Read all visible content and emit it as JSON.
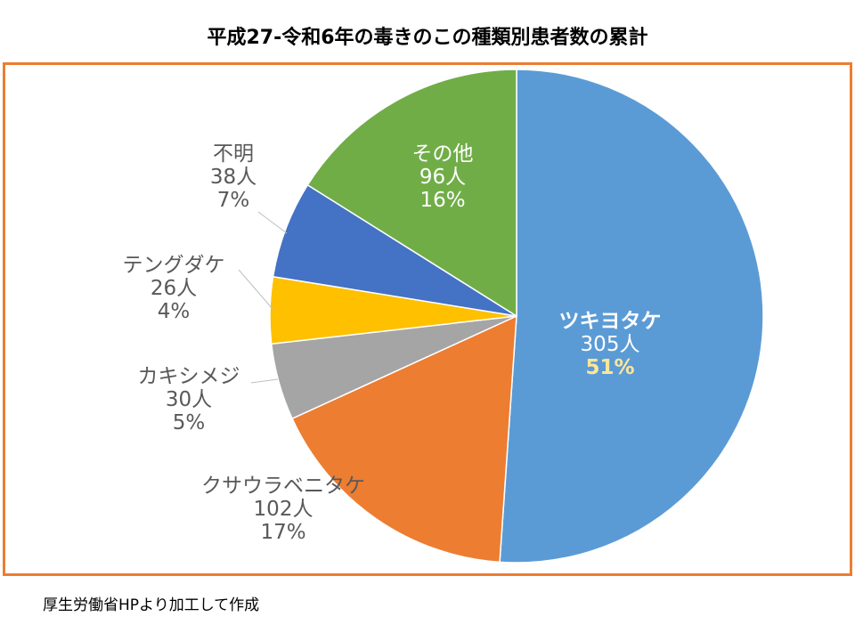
{
  "chart_data": {
    "type": "pie",
    "title": "平成27-令和6年の毒きのこの種類別患者数の累計",
    "start": "top",
    "direction": "clockwise",
    "unit": "人",
    "slices": [
      {
        "label": "ツキヨタケ",
        "value": 305,
        "count_label": "305人",
        "percent_label": "51%",
        "color": "#5B9BD5"
      },
      {
        "label": "クサウラベニタケ",
        "value": 102,
        "count_label": "102人",
        "percent_label": "17%",
        "color": "#ED7D31"
      },
      {
        "label": "カキシメジ",
        "value": 30,
        "count_label": "30人",
        "percent_label": "5%",
        "color": "#A5A5A5"
      },
      {
        "label": "テングダケ",
        "value": 26,
        "count_label": "26人",
        "percent_label": "4%",
        "color": "#FFC000"
      },
      {
        "label": "不明",
        "value": 38,
        "count_label": "38人",
        "percent_label": "7%",
        "color": "#4472C4"
      },
      {
        "label": "その他",
        "value": 96,
        "count_label": "96人",
        "percent_label": "16%",
        "color": "#70AD47"
      }
    ]
  },
  "frame_color": "#ED7D31",
  "source": "厚生労働省HPより加工して作成"
}
